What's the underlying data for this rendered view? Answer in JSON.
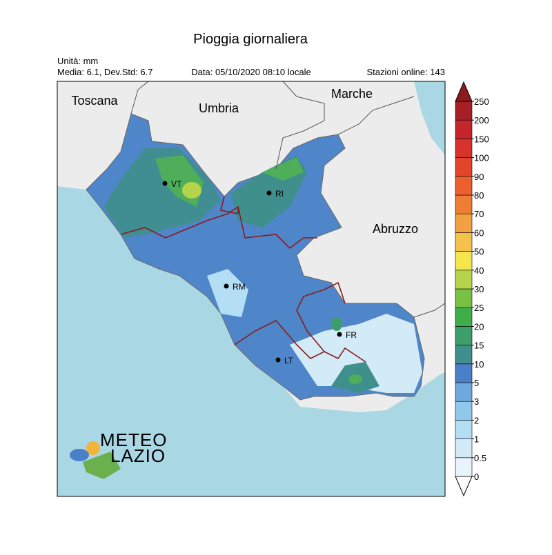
{
  "header": {
    "title": "Pioggia giornaliera",
    "unit": "Unità: mm",
    "stats": "Media: 6.1, Dev.Std: 6.7",
    "date": "Data: 05/10/2020 08:10 locale",
    "stations": "Stazioni online: 143"
  },
  "regions": [
    "Toscana",
    "Umbria",
    "Marche",
    "Abruzzo"
  ],
  "cities": [
    "VT",
    "RI",
    "RM",
    "FR",
    "LT"
  ],
  "logo": {
    "line1": "METEO",
    "line2": "LAZIO"
  },
  "colorbar": {
    "ticks": [
      0,
      0.5,
      1,
      2,
      3,
      5,
      10,
      15,
      20,
      25,
      30,
      40,
      50,
      60,
      70,
      80,
      90,
      100,
      150,
      200,
      250
    ],
    "colors": [
      "#ffffff",
      "#e8f4fa",
      "#d2ebf7",
      "#b4def4",
      "#8fc8ec",
      "#6fa9dc",
      "#4a80c8",
      "#3f8f8c",
      "#3e9e6a",
      "#3fae4a",
      "#79c043",
      "#b5d44c",
      "#f5e74b",
      "#f4c24a",
      "#f2a040",
      "#ef7d34",
      "#ec5f2e",
      "#e2452b",
      "#d7332b",
      "#c4262b",
      "#a81e26",
      "#8c1a1e"
    ]
  }
}
